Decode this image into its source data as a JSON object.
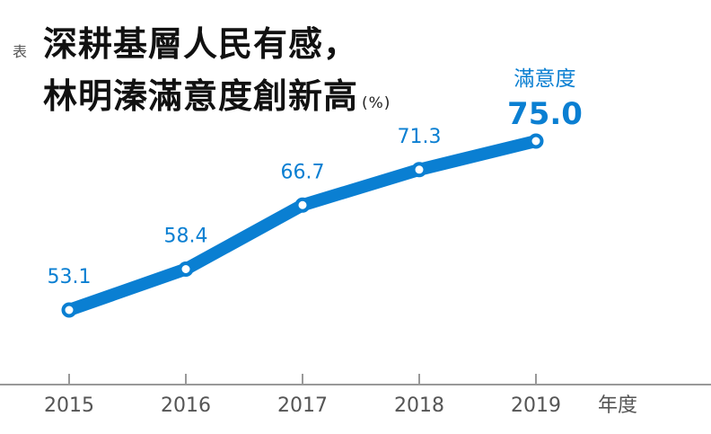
{
  "header": {
    "tag": "表",
    "title_line1": "深耕基層人民有感，",
    "title_line2": "林明溱滿意度創新高",
    "unit": "(%)"
  },
  "chart_data": {
    "type": "line",
    "x": [
      "2015",
      "2016",
      "2017",
      "2018",
      "2019"
    ],
    "values": [
      53.1,
      58.4,
      66.7,
      71.3,
      75.0
    ],
    "value_labels": [
      "53.1",
      "58.4",
      "66.7",
      "71.3",
      "75.0"
    ],
    "highlight_label": "滿意度",
    "xlabel": "年度",
    "ylabel": "",
    "grid": false,
    "colors": {
      "line": "#0a7fd2",
      "label": "#0a7fd2",
      "axis": "#999999",
      "tick_text": "#555555"
    }
  }
}
